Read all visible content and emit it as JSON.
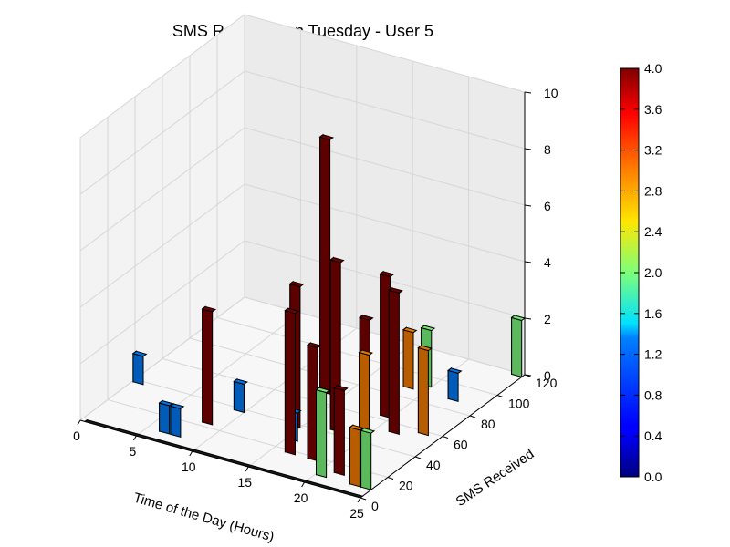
{
  "chart_data": {
    "type": "bar3d",
    "title": "SMS Received on Tuesday - User 5",
    "xlabel": "Time of the Day (Hours)",
    "ylabel": "SMS Received",
    "x_ticks": [
      "0",
      "5",
      "10",
      "15",
      "20",
      "25"
    ],
    "y_ticks": [
      "0",
      "20",
      "40",
      "60",
      "80",
      "100",
      "120"
    ],
    "z_ticks": [
      "0",
      "2",
      "4",
      "6",
      "8",
      "10"
    ],
    "xlim": [
      0,
      25
    ],
    "ylim": [
      0,
      120
    ],
    "zlim": [
      0,
      10
    ],
    "grid": true,
    "colormap": "jet",
    "colorbar": {
      "range": [
        0.0,
        4.0
      ],
      "ticks": [
        "0.0",
        "0.4",
        "0.8",
        "1.2",
        "1.6",
        "2.0",
        "2.4",
        "2.8",
        "3.2",
        "3.6",
        "4.0"
      ]
    },
    "bars": [
      {
        "x": 1,
        "y": 40,
        "z": 1,
        "c": 1
      },
      {
        "x": 7,
        "y": 10,
        "z": 1,
        "c": 1
      },
      {
        "x": 8,
        "y": 10,
        "z": 1,
        "c": 1
      },
      {
        "x": 9,
        "y": 25,
        "z": 4,
        "c": 4
      },
      {
        "x": 10,
        "y": 40,
        "z": 1,
        "c": 1
      },
      {
        "x": 14,
        "y": 70,
        "z": 9,
        "c": 4
      },
      {
        "x": 15,
        "y": 40,
        "z": 5,
        "c": 4
      },
      {
        "x": 16,
        "y": 30,
        "z": 1,
        "c": 1
      },
      {
        "x": 17,
        "y": 20,
        "z": 5,
        "c": 4
      },
      {
        "x": 18,
        "y": 45,
        "z": 6,
        "c": 4
      },
      {
        "x": 19,
        "y": 20,
        "z": 4,
        "c": 4
      },
      {
        "x": 19,
        "y": 90,
        "z": 2,
        "c": 3
      },
      {
        "x": 20,
        "y": 65,
        "z": 5,
        "c": 4
      },
      {
        "x": 20,
        "y": 50,
        "z": 4,
        "c": 4
      },
      {
        "x": 20,
        "y": 95,
        "z": 2,
        "c": 2
      },
      {
        "x": 21,
        "y": 10,
        "z": 3,
        "c": 2
      },
      {
        "x": 22,
        "y": 15,
        "z": 3,
        "c": 4
      },
      {
        "x": 22,
        "y": 55,
        "z": 5,
        "c": 4
      },
      {
        "x": 23,
        "y": 25,
        "z": 4,
        "c": 3
      },
      {
        "x": 23,
        "y": 90,
        "z": 1,
        "c": 1
      },
      {
        "x": 24,
        "y": 10,
        "z": 2,
        "c": 3
      },
      {
        "x": 24,
        "y": 60,
        "z": 3,
        "c": 3
      },
      {
        "x": 25,
        "y": 10,
        "z": 2,
        "c": 2
      },
      {
        "x": 25,
        "y": 120,
        "z": 2,
        "c": 2
      }
    ]
  }
}
